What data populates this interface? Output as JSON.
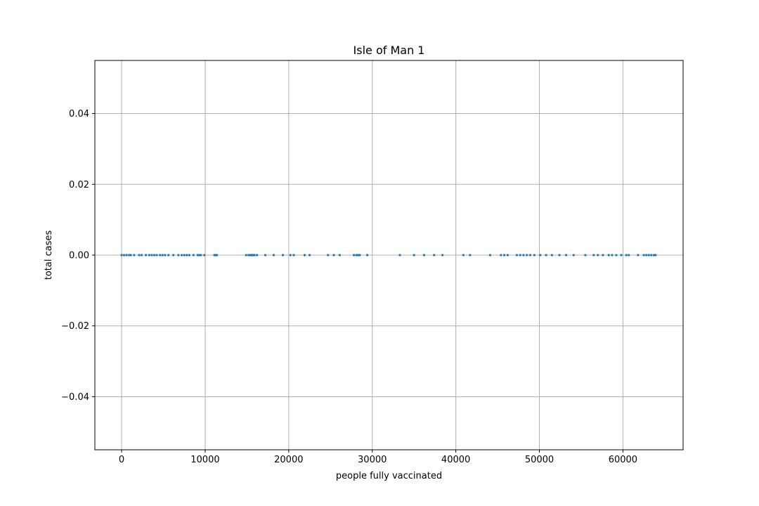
{
  "chart_data": {
    "type": "scatter",
    "title": "Isle of Man 1",
    "xlabel": "people fully vaccinated",
    "ylabel": "total cases",
    "xlim": [
      -3200,
      67200
    ],
    "ylim": [
      -0.055,
      0.055
    ],
    "x_ticks": [
      0,
      10000,
      20000,
      30000,
      40000,
      50000,
      60000
    ],
    "x_tick_labels": [
      "0",
      "10000",
      "20000",
      "30000",
      "40000",
      "50000",
      "60000"
    ],
    "y_ticks": [
      -0.04,
      -0.02,
      0.0,
      0.02,
      0.04
    ],
    "y_tick_labels": [
      "−0.04",
      "−0.02",
      "0.00",
      "0.02",
      "0.04"
    ],
    "grid": true,
    "colors": {
      "points": "#1f77b4",
      "grid": "#b0b0b0",
      "axes": "#000000"
    },
    "series": [
      {
        "points": [
          [
            0,
            0
          ],
          [
            300,
            0
          ],
          [
            600,
            0
          ],
          [
            900,
            0
          ],
          [
            1100,
            0
          ],
          [
            1500,
            0
          ],
          [
            2100,
            0
          ],
          [
            2400,
            0
          ],
          [
            2900,
            0
          ],
          [
            3300,
            0
          ],
          [
            3600,
            0
          ],
          [
            3900,
            0
          ],
          [
            4200,
            0
          ],
          [
            4600,
            0
          ],
          [
            4900,
            0
          ],
          [
            5200,
            0
          ],
          [
            5600,
            0
          ],
          [
            6200,
            0
          ],
          [
            6800,
            0
          ],
          [
            7200,
            0
          ],
          [
            7500,
            0
          ],
          [
            7800,
            0
          ],
          [
            8100,
            0
          ],
          [
            8600,
            0
          ],
          [
            9100,
            0
          ],
          [
            9300,
            0
          ],
          [
            9500,
            0
          ],
          [
            9900,
            0
          ],
          [
            11100,
            0
          ],
          [
            11200,
            0
          ],
          [
            11300,
            0
          ],
          [
            11400,
            0
          ],
          [
            14900,
            0
          ],
          [
            15200,
            0
          ],
          [
            15400,
            0
          ],
          [
            15500,
            0
          ],
          [
            15600,
            0
          ],
          [
            15700,
            0
          ],
          [
            15800,
            0
          ],
          [
            15900,
            0
          ],
          [
            16200,
            0
          ],
          [
            17200,
            0
          ],
          [
            18200,
            0
          ],
          [
            19300,
            0
          ],
          [
            20200,
            0
          ],
          [
            20600,
            0
          ],
          [
            21900,
            0
          ],
          [
            22500,
            0
          ],
          [
            24700,
            0
          ],
          [
            25400,
            0
          ],
          [
            26100,
            0
          ],
          [
            27800,
            0
          ],
          [
            28100,
            0
          ],
          [
            28300,
            0
          ],
          [
            28500,
            0
          ],
          [
            29400,
            0
          ],
          [
            33300,
            0
          ],
          [
            35000,
            0
          ],
          [
            36200,
            0
          ],
          [
            37400,
            0
          ],
          [
            38400,
            0
          ],
          [
            40900,
            0
          ],
          [
            41700,
            0
          ],
          [
            44100,
            0
          ],
          [
            45400,
            0
          ],
          [
            45800,
            0
          ],
          [
            46200,
            0
          ],
          [
            47300,
            0
          ],
          [
            47700,
            0
          ],
          [
            48100,
            0
          ],
          [
            48500,
            0
          ],
          [
            48900,
            0
          ],
          [
            49400,
            0
          ],
          [
            50100,
            0
          ],
          [
            50800,
            0
          ],
          [
            51500,
            0
          ],
          [
            52400,
            0
          ],
          [
            53200,
            0
          ],
          [
            54100,
            0
          ],
          [
            55500,
            0
          ],
          [
            56500,
            0
          ],
          [
            57000,
            0
          ],
          [
            57600,
            0
          ],
          [
            58300,
            0
          ],
          [
            58700,
            0
          ],
          [
            59200,
            0
          ],
          [
            59800,
            0
          ],
          [
            60400,
            0
          ],
          [
            60700,
            0
          ],
          [
            61800,
            0
          ],
          [
            62500,
            0
          ],
          [
            62800,
            0
          ],
          [
            63100,
            0
          ],
          [
            63400,
            0
          ],
          [
            63700,
            0
          ],
          [
            63900,
            0
          ]
        ]
      }
    ]
  }
}
